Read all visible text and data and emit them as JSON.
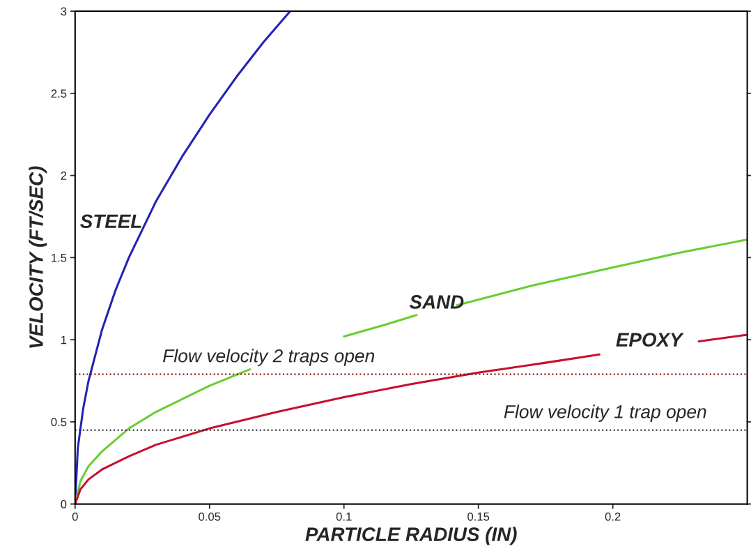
{
  "chart_data": {
    "type": "line",
    "xlabel": "PARTICLE RADIUS (IN)",
    "ylabel": "VELOCITY (FT/SEC)",
    "xlim": [
      0,
      0.25
    ],
    "xticks": [
      0,
      0.05,
      0.1,
      0.15,
      0.2
    ],
    "ylim": [
      0,
      3
    ],
    "yticks": [
      0,
      0.5,
      1,
      1.5,
      2,
      2.5,
      3
    ],
    "grid": false,
    "marker": "none",
    "line_style": "solid",
    "series": [
      {
        "name": "STEEL",
        "color": "#2323b4",
        "x": [
          0,
          0.001,
          0.003,
          0.005,
          0.01,
          0.015,
          0.02,
          0.03,
          0.04,
          0.05,
          0.06,
          0.07,
          0.08
        ],
        "values": [
          0,
          0.34,
          0.58,
          0.75,
          1.06,
          1.3,
          1.5,
          1.84,
          2.12,
          2.37,
          2.6,
          2.81,
          3.0
        ]
      },
      {
        "name": "SAND",
        "color": "#6acd34",
        "x": [
          0,
          0.002,
          0.005,
          0.01,
          0.02,
          0.03,
          0.04,
          0.05,
          0.065,
          0.08,
          0.1,
          0.115,
          0.127,
          0.135,
          0.142,
          0.17,
          0.2,
          0.225,
          0.25
        ],
        "values": [
          0,
          0.14,
          0.23,
          0.32,
          0.46,
          0.56,
          0.64,
          0.72,
          0.82,
          null,
          1.02,
          1.09,
          1.15,
          null,
          1.21,
          1.33,
          1.44,
          1.53,
          1.61
        ]
      },
      {
        "name": "EPOXY",
        "color": "#c8102e",
        "x": [
          0,
          0.002,
          0.005,
          0.01,
          0.02,
          0.03,
          0.05,
          0.075,
          0.1,
          0.125,
          0.15,
          0.175,
          0.195,
          0.21,
          0.232,
          0.25
        ],
        "values": [
          0,
          0.09,
          0.15,
          0.21,
          0.29,
          0.36,
          0.46,
          0.56,
          0.65,
          0.73,
          0.8,
          0.86,
          0.91,
          null,
          0.99,
          1.03
        ]
      }
    ],
    "ref_lines": [
      {
        "axis": "y",
        "value": 0.79,
        "color": "#8b1a1a",
        "line_style": "dotted",
        "label": "Flow velocity 2 traps open"
      },
      {
        "axis": "y",
        "value": 0.45,
        "color": "#222222",
        "line_style": "dotted",
        "label": "Flow velocity 1 trap open"
      }
    ]
  }
}
